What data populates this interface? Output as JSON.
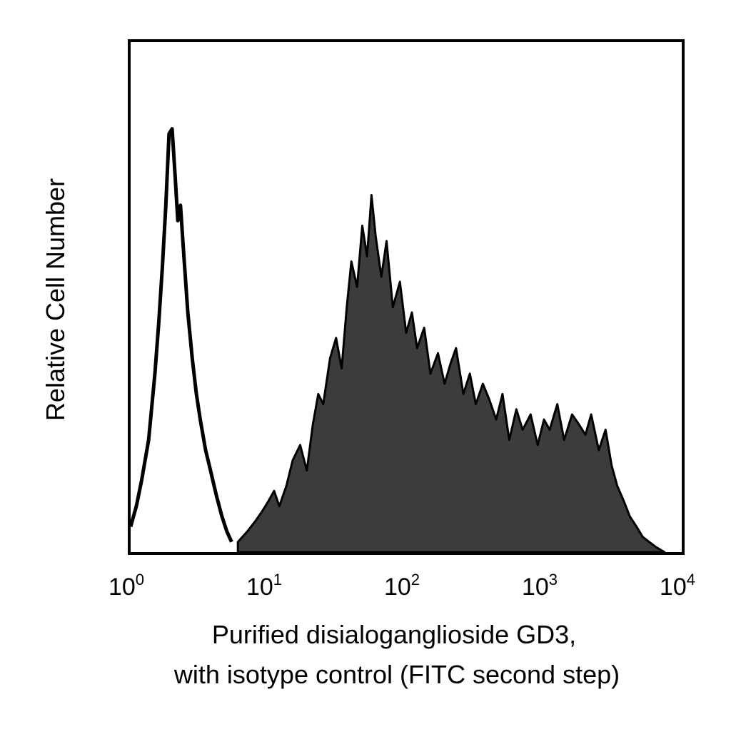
{
  "chart_data": {
    "type": "area",
    "title": "",
    "xlabel_lines": [
      "Purified disialoganglioside GD3,",
      "with isotype control (FITC second step)"
    ],
    "ylabel": "Relative Cell Number",
    "x_scale": "log",
    "xlim": [
      1,
      10000
    ],
    "ylim": [
      0,
      100
    ],
    "grid": false,
    "legend": "none",
    "x_ticks": [
      {
        "base": "10",
        "exp": "0"
      },
      {
        "base": "10",
        "exp": "1"
      },
      {
        "base": "10",
        "exp": "2"
      },
      {
        "base": "10",
        "exp": "3"
      },
      {
        "base": "10",
        "exp": "4"
      }
    ],
    "colors": {
      "isotype_stroke": "#000000",
      "gd3_fill": "#3c3c3c",
      "gd3_stroke": "#000000",
      "frame": "#000000"
    },
    "series": [
      {
        "style": "outline",
        "x": [
          1.0,
          1.1,
          1.2,
          1.35,
          1.5,
          1.6,
          1.7,
          1.8,
          1.9,
          2.0,
          2.1,
          2.2,
          2.3,
          2.45,
          2.6,
          2.8,
          3.0,
          3.2,
          3.5,
          3.8,
          4.2,
          4.6,
          5.0,
          5.4
        ],
        "y": [
          5,
          9,
          14,
          22,
          35,
          45,
          56,
          68,
          82,
          83,
          74,
          65,
          68,
          57,
          47,
          38,
          31,
          26,
          20,
          16,
          11,
          7,
          4,
          2
        ]
      },
      {
        "style": "filled",
        "x": [
          6,
          7,
          8,
          9,
          10,
          11,
          12,
          13.5,
          15,
          17,
          19,
          21,
          23,
          25,
          28,
          31,
          34,
          37,
          40,
          44,
          48,
          52,
          56,
          60,
          66,
          72,
          80,
          90,
          100,
          110,
          120,
          135,
          150,
          170,
          190,
          210,
          230,
          260,
          290,
          320,
          360,
          400,
          450,
          500,
          560,
          630,
          700,
          800,
          900,
          1000,
          1100,
          1250,
          1400,
          1600,
          1800,
          2000,
          2200,
          2500,
          2800,
          3100,
          3400,
          3800,
          4200,
          4700,
          5200,
          5800,
          6500,
          7500
        ],
        "y": [
          2,
          4,
          6,
          8,
          10,
          12,
          9,
          13,
          18,
          21,
          16,
          25,
          31,
          29,
          38,
          42,
          36,
          48,
          57,
          52,
          64,
          58,
          70,
          62,
          54,
          61,
          48,
          53,
          43,
          47,
          40,
          44,
          35,
          39,
          33,
          37,
          40,
          31,
          35,
          29,
          33,
          30,
          26,
          31,
          22,
          28,
          24,
          27,
          21,
          26,
          24,
          29,
          22,
          27,
          25,
          23,
          27,
          20,
          24,
          17,
          13,
          10,
          7,
          5,
          3,
          2,
          1,
          0
        ]
      }
    ]
  }
}
